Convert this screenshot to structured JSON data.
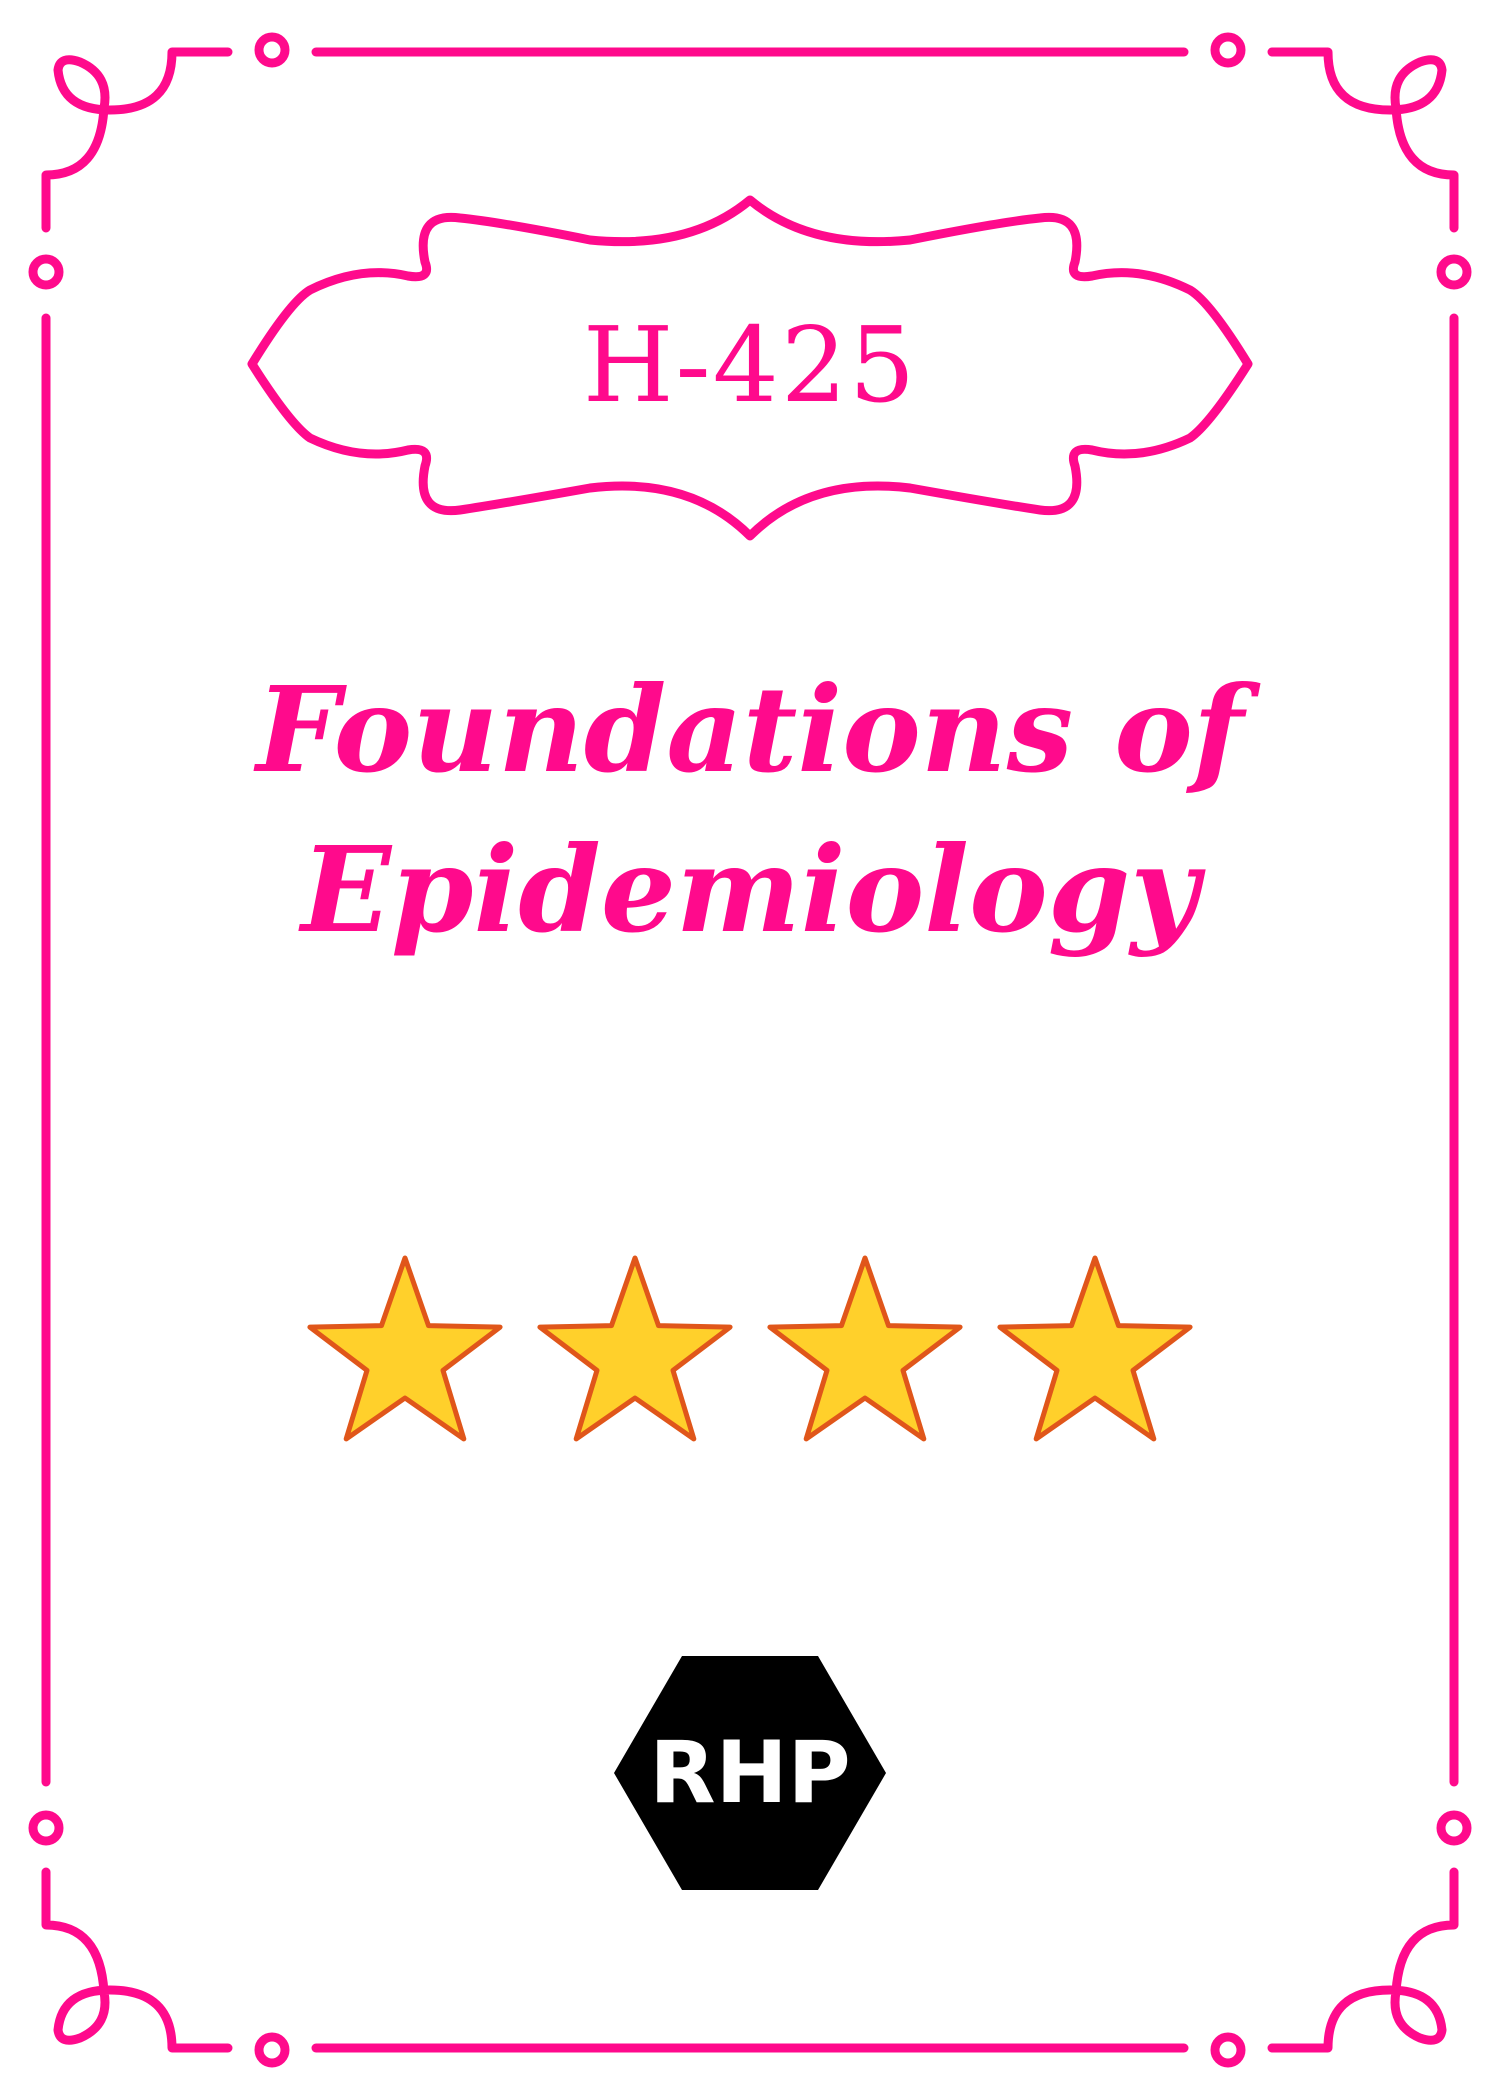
{
  "cover": {
    "code": "H-425",
    "title_lines": [
      "Foundations of",
      "Epidemiology"
    ],
    "rating": {
      "stars": 4,
      "icon": "star-icon"
    },
    "publisher_logo": "RHP"
  },
  "colors": {
    "accent": "#ff0a8c",
    "star_fill": "#ffd02b",
    "star_stroke": "#e0561a",
    "logo_bg": "#000000",
    "logo_text": "#ffffff"
  }
}
